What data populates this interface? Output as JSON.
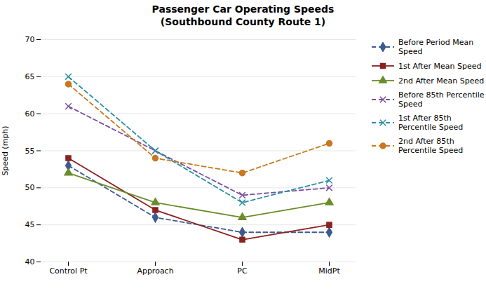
{
  "chart_data": {
    "type": "line",
    "title": "Passenger Car Operating Speeds\n(Southbound County Route 1)",
    "ylabel": "Speed (mph)",
    "categories": [
      "Control Pt",
      "Approach",
      "PC",
      "MidPt"
    ],
    "ylim": [
      40,
      70
    ],
    "yticks": [
      40,
      45,
      50,
      55,
      60,
      65,
      70
    ],
    "grid": true,
    "legend": "right",
    "series": [
      {
        "name": "Before Period Mean\nSpeed",
        "color": "#3d5a8e",
        "line_style": "dashed",
        "marker": "diamond",
        "values": [
          53,
          46,
          44,
          44
        ]
      },
      {
        "name": "1st After Mean Speed",
        "color": "#8b2020",
        "line_style": "solid",
        "marker": "square",
        "values": [
          54,
          47,
          43,
          45
        ]
      },
      {
        "name": "2nd After Mean Speed",
        "color": "#6a8c2a",
        "line_style": "solid",
        "marker": "triangle",
        "values": [
          52,
          48,
          46,
          48
        ]
      },
      {
        "name": "Before 85th Percentile\nSpeed",
        "color": "#7b4da0",
        "line_style": "dashed",
        "marker": "x",
        "values": [
          61,
          55,
          49,
          50
        ]
      },
      {
        "name": "1st After 85th\nPercentile Speed",
        "color": "#2a8fa0",
        "line_style": "dashed",
        "marker": "x",
        "values": [
          65,
          55,
          48,
          51
        ]
      },
      {
        "name": "2nd After 85th\nPercentile Speed",
        "color": "#c87820",
        "line_style": "dashed",
        "marker": "circle",
        "values": [
          64,
          54,
          52,
          56
        ]
      }
    ]
  }
}
